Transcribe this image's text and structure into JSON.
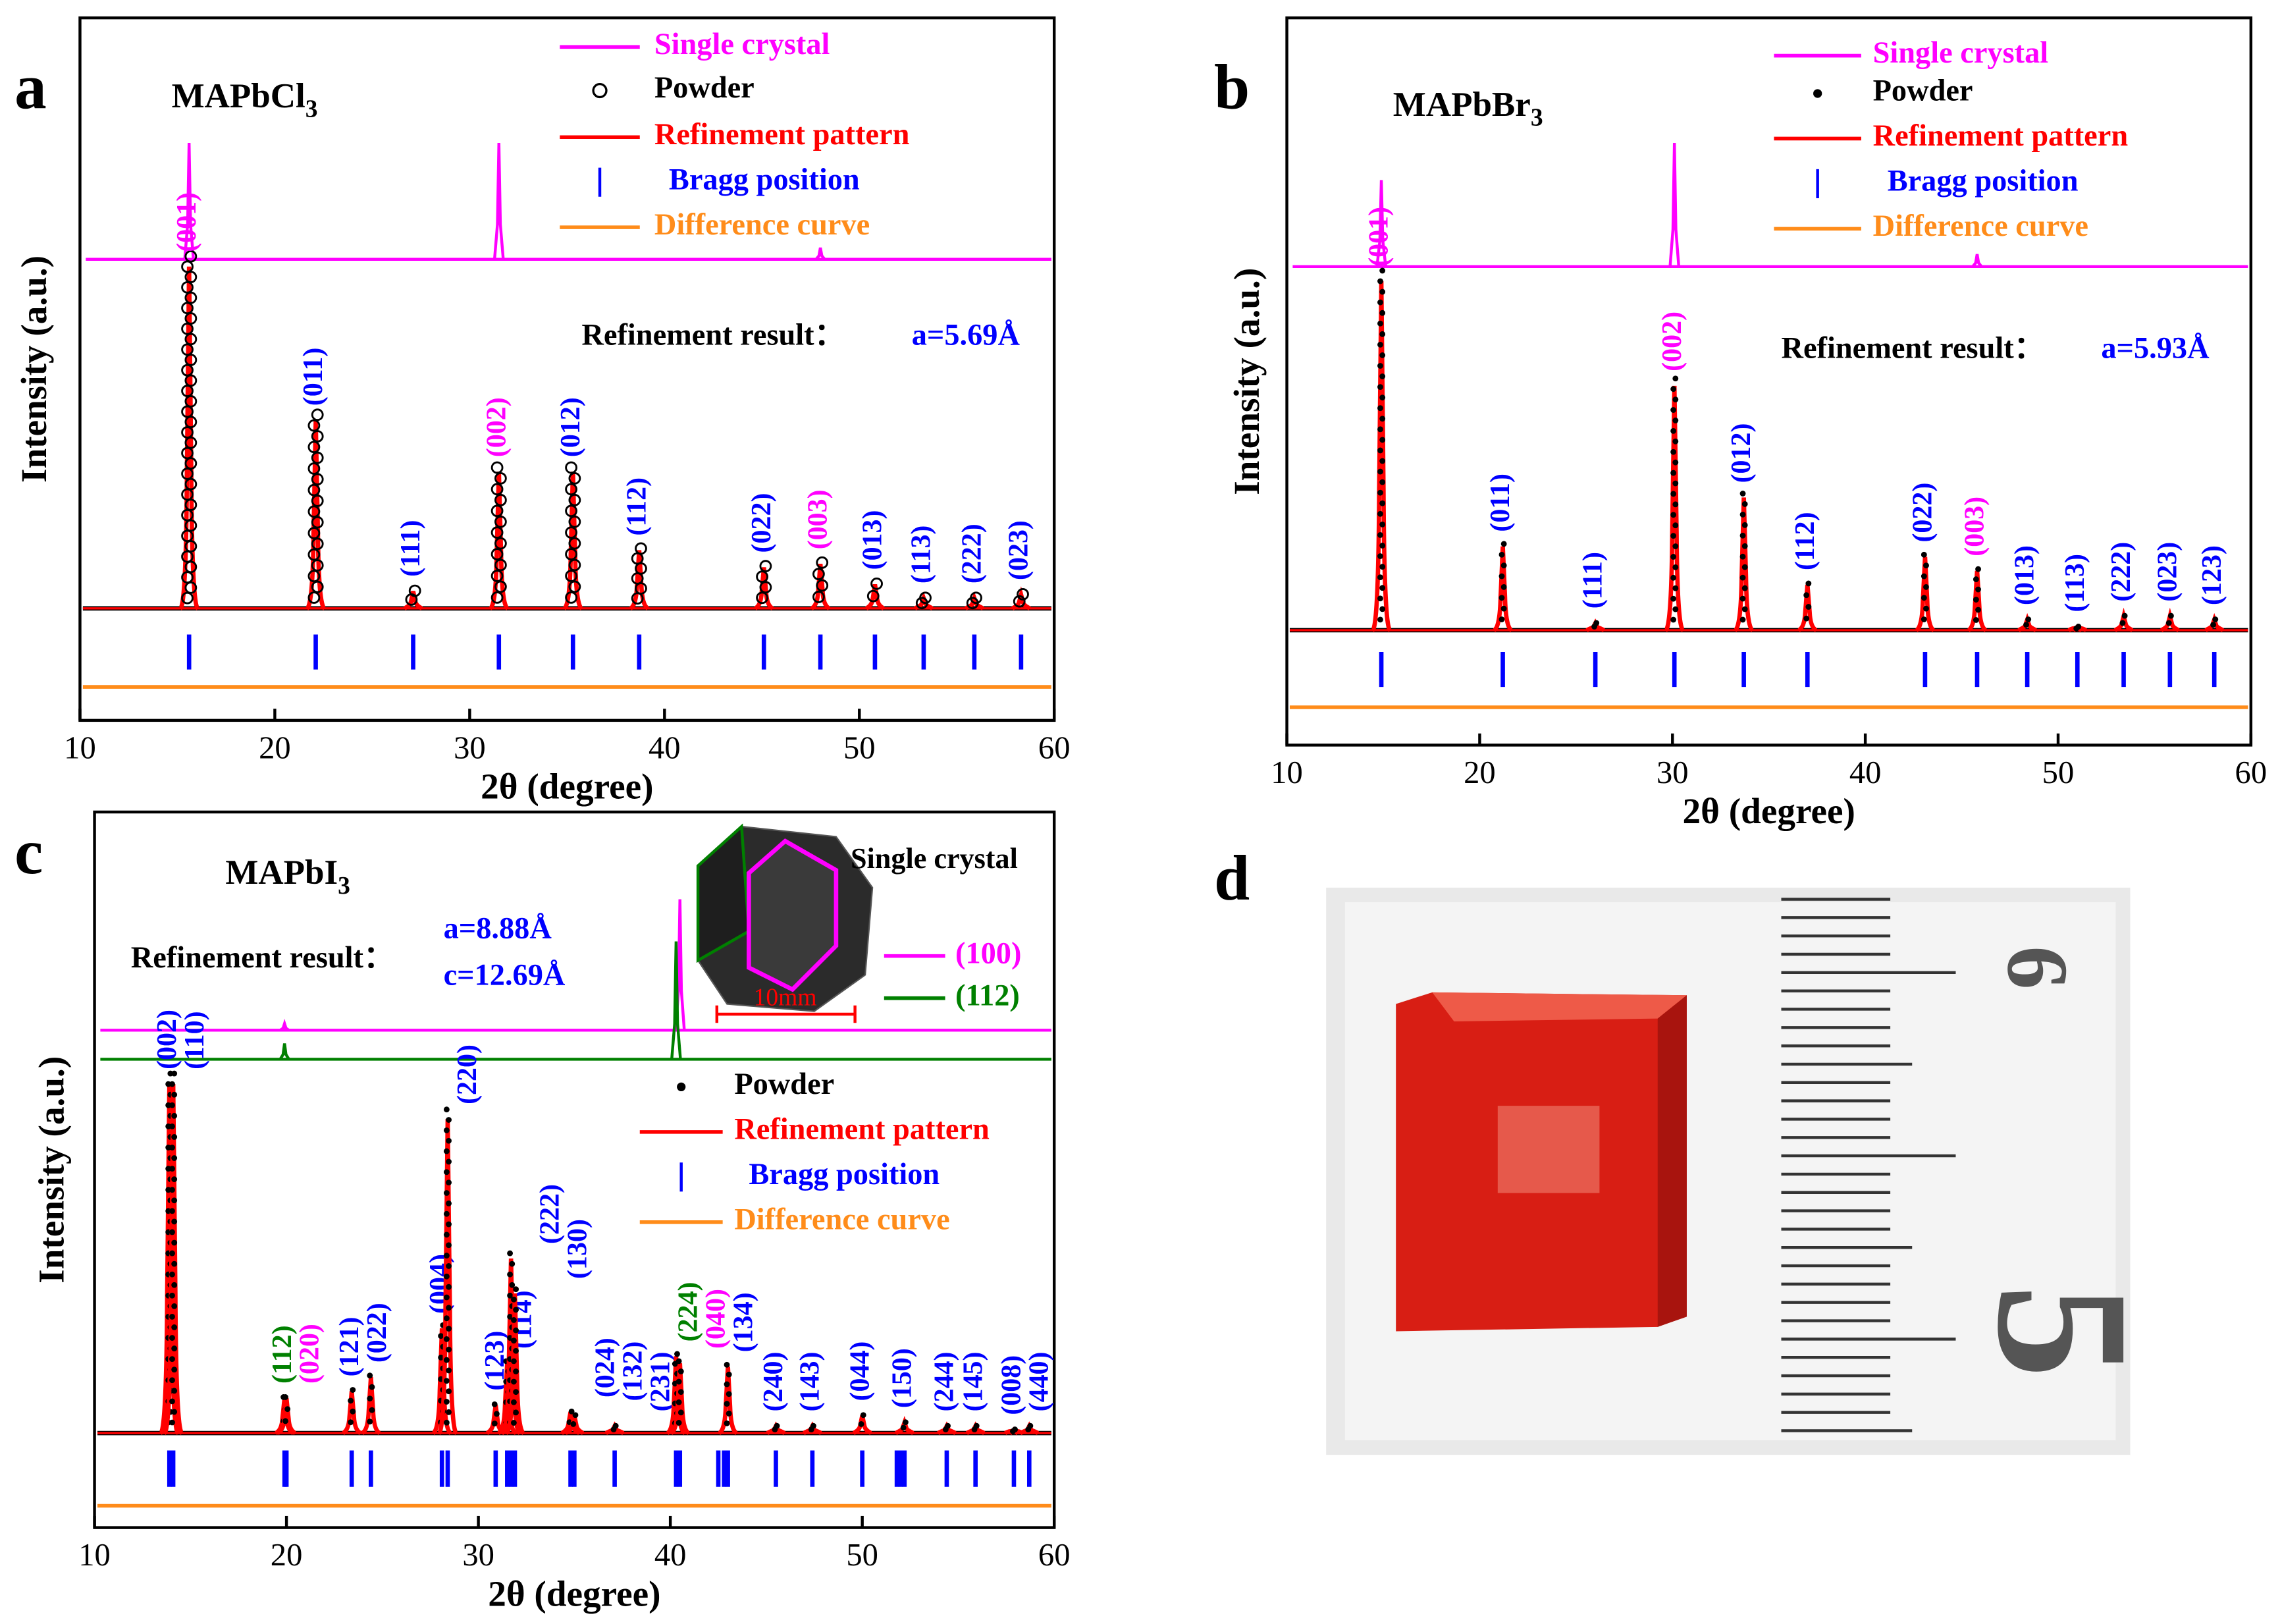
{
  "chart_data": [
    {
      "type": "line",
      "panel": "a",
      "formula": {
        "text": "MAPbCl",
        "sub": "3"
      },
      "x_label": "2θ (degree)",
      "y_label": "Intensity (a.u.)",
      "xlim": [
        10,
        60
      ],
      "xticks": [
        10,
        20,
        30,
        40,
        50,
        60
      ],
      "single_crystal": [
        {
          "name": "Single crystal",
          "color": "#ff00ff",
          "x": [
            15.6,
            31.5,
            48.0
          ],
          "values": [
            100,
            100,
            10
          ]
        }
      ],
      "powder": {
        "name": "Powder",
        "marker": "circle",
        "color": "#000000"
      },
      "refinement": {
        "name": "Refinement pattern",
        "color": "#ff0000"
      },
      "bragg": {
        "name": "Bragg position",
        "color": "#0000ff",
        "positions": [
          15.6,
          22.1,
          27.1,
          31.5,
          35.3,
          38.7,
          45.1,
          48.0,
          50.8,
          53.3,
          55.9,
          58.3
        ]
      },
      "difference": {
        "name": "Difference curve",
        "color": "#ff8c1a"
      },
      "peaks": {
        "labels": [
          "(001)",
          "(011)",
          "(111)",
          "(002)",
          "(012)",
          "(112)",
          "(022)",
          "(003)",
          "(013)",
          "(113)",
          "(222)",
          "(023)"
        ],
        "x": [
          15.6,
          22.1,
          27.1,
          31.5,
          35.3,
          38.7,
          45.1,
          48.0,
          50.8,
          53.3,
          55.9,
          58.3
        ],
        "values": [
          100,
          55,
          5,
          40,
          40,
          17,
          12,
          13,
          7,
          3,
          3,
          4
        ],
        "colors": [
          "#ff00ff",
          "#0000ff",
          "#0000ff",
          "#ff00ff",
          "#0000ff",
          "#0000ff",
          "#0000ff",
          "#ff00ff",
          "#0000ff",
          "#0000ff",
          "#0000ff",
          "#0000ff"
        ]
      },
      "refinement_result": {
        "label": "Refinement result：",
        "params": [
          "a=5.69Å"
        ]
      }
    },
    {
      "type": "line",
      "panel": "b",
      "formula": {
        "text": "MAPbBr",
        "sub": "3"
      },
      "x_label": "2θ (degree)",
      "y_label": "Intensity (a.u.)",
      "xlim": [
        10,
        60
      ],
      "xticks": [
        10,
        20,
        30,
        40,
        50,
        60
      ],
      "single_crystal": [
        {
          "name": "Single crystal",
          "color": "#ff00ff",
          "x": [
            14.9,
            30.1,
            45.8
          ],
          "values": [
            70,
            100,
            10
          ]
        }
      ],
      "powder": {
        "name": "Powder",
        "marker": "dot",
        "color": "#000000"
      },
      "refinement": {
        "name": "Refinement pattern",
        "color": "#ff0000"
      },
      "bragg": {
        "name": "Bragg position",
        "color": "#0000ff",
        "positions": [
          14.9,
          21.2,
          26.0,
          30.1,
          33.7,
          37.0,
          43.1,
          45.8,
          48.4,
          51.0,
          53.4,
          55.8,
          58.1
        ]
      },
      "difference": {
        "name": "Difference curve",
        "color": "#ff8c1a"
      },
      "peaks": {
        "labels": [
          "(001)",
          "(011)",
          "(111)",
          "(002)",
          "(012)",
          "(112)",
          "(022)",
          "(003)",
          "(013)",
          "(113)",
          "(222)",
          "(023)",
          "(123)"
        ],
        "x": [
          14.9,
          21.2,
          26.0,
          30.1,
          33.7,
          37.0,
          43.1,
          45.8,
          48.4,
          51.0,
          53.4,
          55.8,
          58.1
        ],
        "values": [
          100,
          24,
          2,
          70,
          38,
          13,
          21,
          17,
          3,
          1,
          4,
          4,
          3
        ],
        "colors": [
          "#ff00ff",
          "#0000ff",
          "#0000ff",
          "#ff00ff",
          "#0000ff",
          "#0000ff",
          "#0000ff",
          "#ff00ff",
          "#0000ff",
          "#0000ff",
          "#0000ff",
          "#0000ff",
          "#0000ff"
        ]
      },
      "refinement_result": {
        "label": "Refinement result：",
        "params": [
          "a=5.93Å"
        ]
      }
    },
    {
      "type": "line",
      "panel": "c",
      "formula": {
        "text": "MAPbI",
        "sub": "3"
      },
      "x_label": "2θ (degree)",
      "y_label": "Intensity (a.u.)",
      "xlim": [
        10,
        60
      ],
      "xticks": [
        10,
        20,
        30,
        40,
        50,
        60
      ],
      "single_crystal_title": "Single crystal",
      "scale_bar": "10mm",
      "single_crystal": [
        {
          "name": "(100)",
          "color": "#ff00ff",
          "x": [
            19.9,
            40.5
          ],
          "values": [
            5,
            100
          ]
        },
        {
          "name": "(112)",
          "color": "#008000",
          "x": [
            19.9,
            40.3
          ],
          "values": [
            12,
            90
          ]
        }
      ],
      "powder": {
        "name": "Powder",
        "marker": "dot",
        "color": "#000000"
      },
      "refinement": {
        "name": "Refinement pattern",
        "color": "#ff0000"
      },
      "bragg": {
        "name": "Bragg position",
        "color": "#0000ff",
        "positions": [
          13.9,
          14.1,
          19.9,
          20.0,
          23.4,
          24.4,
          28.1,
          28.4,
          30.9,
          31.5,
          31.7,
          31.9,
          34.8,
          35.0,
          37.1,
          40.3,
          40.5,
          42.5,
          42.8,
          43.0,
          45.5,
          47.4,
          50.0,
          51.8,
          52.0,
          52.2,
          54.4,
          55.9,
          57.9,
          58.7
        ]
      },
      "difference": {
        "name": "Difference curve",
        "color": "#ff8c1a"
      },
      "peaks": {
        "labels": [
          "(002)",
          "(110)",
          "(112)",
          "(020)",
          "(121)",
          "(022)",
          "(004)",
          "(220)",
          "(123)",
          "(114)",
          "(222)",
          "(130)",
          "(024)",
          "(132)",
          "(231)",
          "(224)",
          "(040)",
          "(134)",
          "(240)",
          "(143)",
          "(044)",
          "(150)",
          "(244)",
          "(145)",
          "(008)",
          "(440)"
        ],
        "x": [
          13.9,
          14.1,
          19.9,
          20.0,
          23.4,
          24.4,
          28.1,
          28.4,
          30.9,
          31.5,
          31.7,
          31.9,
          34.8,
          35.0,
          37.1,
          40.3,
          40.5,
          43.0,
          45.5,
          47.4,
          50.0,
          52.2,
          54.4,
          55.9,
          57.9,
          58.7
        ],
        "values": [
          100,
          100,
          10,
          10,
          12,
          16,
          30,
          90,
          8,
          20,
          50,
          40,
          6,
          5,
          2,
          22,
          20,
          19,
          2,
          2,
          5,
          3,
          2,
          2,
          1,
          2
        ],
        "colors": [
          "#0000ff",
          "#0000ff",
          "#008000",
          "#ff00ff",
          "#0000ff",
          "#0000ff",
          "#0000ff",
          "#0000ff",
          "#0000ff",
          "#0000ff",
          "#0000ff",
          "#0000ff",
          "#0000ff",
          "#0000ff",
          "#0000ff",
          "#008000",
          "#ff00ff",
          "#0000ff",
          "#0000ff",
          "#0000ff",
          "#0000ff",
          "#0000ff",
          "#0000ff",
          "#0000ff",
          "#0000ff",
          "#0000ff"
        ]
      },
      "refinement_result": {
        "label": "Refinement result：",
        "params": [
          "a=8.88Å",
          "c=12.69Å"
        ]
      }
    }
  ],
  "photo": {
    "panel": "d",
    "ruler_labels": [
      "6",
      "5"
    ]
  }
}
